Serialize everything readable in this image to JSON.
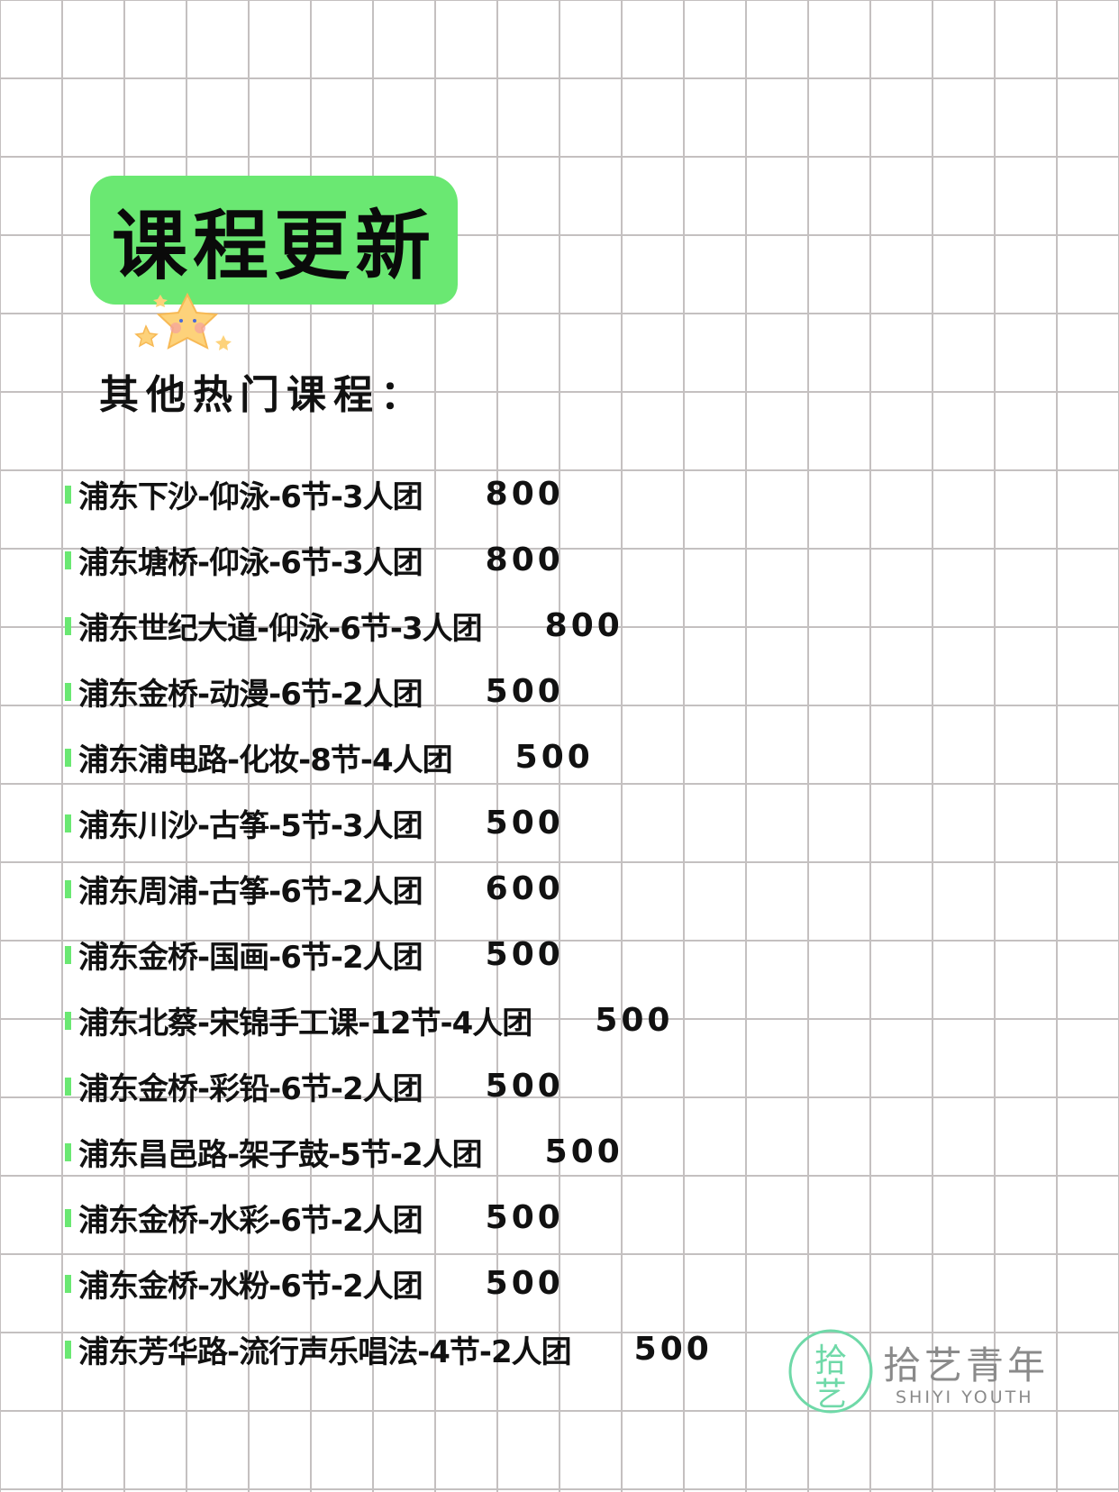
{
  "header": {
    "title": "课程更新",
    "subtitle": "其他热门课程："
  },
  "courses": [
    {
      "name": "浦东下沙-仰泳-6节-3人团",
      "price": "800"
    },
    {
      "name": "浦东塘桥-仰泳-6节-3人团",
      "price": "800"
    },
    {
      "name": "浦东世纪大道-仰泳-6节-3人团",
      "price": "800"
    },
    {
      "name": "浦东金桥-动漫-6节-2人团",
      "price": "500"
    },
    {
      "name": "浦东浦电路-化妆-8节-4人团",
      "price": "500"
    },
    {
      "name": "浦东川沙-古筝-5节-3人团",
      "price": "500"
    },
    {
      "name": "浦东周浦-古筝-6节-2人团",
      "price": "600"
    },
    {
      "name": "浦东金桥-国画-6节-2人团",
      "price": "500"
    },
    {
      "name": "浦东北蔡-宋锦手工课-12节-4人团",
      "price": "500"
    },
    {
      "name": "浦东金桥-彩铅-6节-2人团",
      "price": "500"
    },
    {
      "name": "浦东昌邑路-架子鼓-5节-2人团",
      "price": "500"
    },
    {
      "name": "浦东金桥-水彩-6节-2人团",
      "price": "500"
    },
    {
      "name": "浦东金桥-水粉-6节-2人团",
      "price": "500"
    },
    {
      "name": "浦东芳华路-流行声乐唱法-4节-2人团",
      "price": "500"
    }
  ],
  "logo": {
    "mark": "拾艺",
    "name": "拾艺青年",
    "english": "SHIYI YOUTH",
    "color": "#6fd9a8"
  },
  "colors": {
    "accent": "#6ae872",
    "grid": "#c4c0c0"
  }
}
